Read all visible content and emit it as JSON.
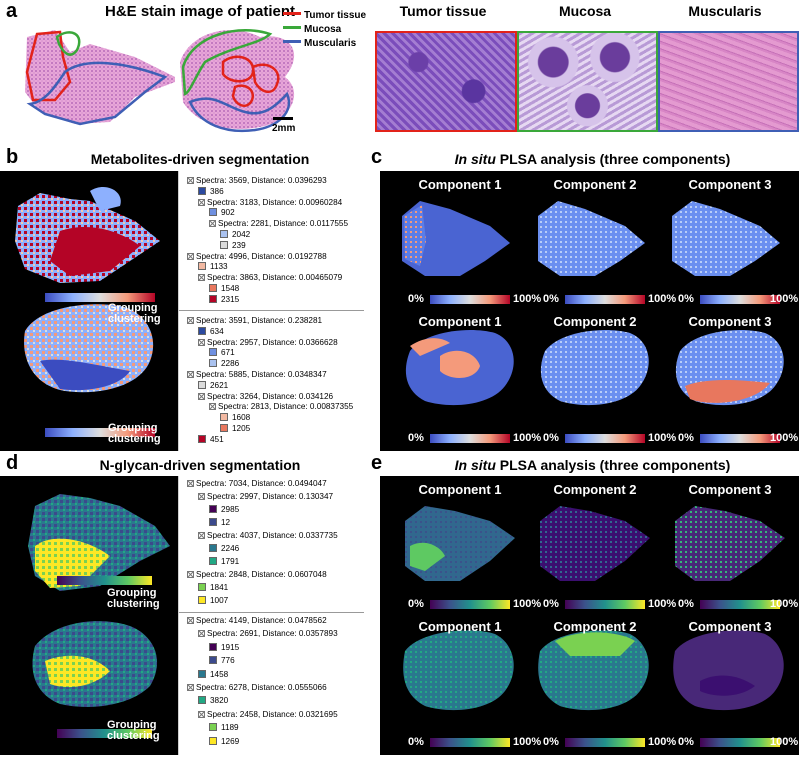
{
  "panels": {
    "a": {
      "letter": "a",
      "title": "H&E stain image of patient",
      "legend": [
        {
          "label": "Tumor tissue",
          "color": "#e2231a"
        },
        {
          "label": "Mucosa",
          "color": "#3aa83a"
        },
        {
          "label": "Muscularis",
          "color": "#3f5fb5"
        }
      ],
      "scalebar": "2mm",
      "micro_labels": [
        "Tumor tissue",
        "Mucosa",
        "Muscularis"
      ],
      "micro_border_colors": [
        "#e2231a",
        "#3aa83a",
        "#3f5fb5"
      ]
    },
    "b": {
      "letter": "b",
      "title": "Metabolites-driven segmentation",
      "grouping_label_1": "Grouping",
      "grouping_label_2": "clustering",
      "tree1": [
        {
          "indent": 0,
          "type": "node",
          "text": "Spectra: 3569, Distance: 0.0396293"
        },
        {
          "indent": 1,
          "type": "leaf",
          "text": "386",
          "color": "#2c4aa0"
        },
        {
          "indent": 1,
          "type": "node",
          "text": "Spectra: 3183, Distance: 0.00960284"
        },
        {
          "indent": 2,
          "type": "leaf",
          "text": "902",
          "color": "#6f90e0"
        },
        {
          "indent": 2,
          "type": "node",
          "text": "Spectra: 2281, Distance: 0.0117555"
        },
        {
          "indent": 3,
          "type": "leaf",
          "text": "2042",
          "color": "#aac2ef"
        },
        {
          "indent": 3,
          "type": "leaf",
          "text": "239",
          "color": "#dcdcdc"
        },
        {
          "indent": 0,
          "type": "node",
          "text": "Spectra: 4996, Distance: 0.0192788"
        },
        {
          "indent": 1,
          "type": "leaf",
          "text": "1133",
          "color": "#f2b9a2"
        },
        {
          "indent": 1,
          "type": "node",
          "text": "Spectra: 3863, Distance: 0.00465079"
        },
        {
          "indent": 2,
          "type": "leaf",
          "text": "1548",
          "color": "#e8775e"
        },
        {
          "indent": 2,
          "type": "leaf",
          "text": "2315",
          "color": "#b40426"
        }
      ],
      "tree2": [
        {
          "indent": 0,
          "type": "node",
          "text": "Spectra: 3591, Distance: 0.238281"
        },
        {
          "indent": 1,
          "type": "leaf",
          "text": "634",
          "color": "#2c4aa0"
        },
        {
          "indent": 1,
          "type": "node",
          "text": "Spectra: 2957, Distance: 0.0366628"
        },
        {
          "indent": 2,
          "type": "leaf",
          "text": "671",
          "color": "#6f90e0"
        },
        {
          "indent": 2,
          "type": "leaf",
          "text": "2286",
          "color": "#aac2ef"
        },
        {
          "indent": 0,
          "type": "node",
          "text": "Spectra: 5885, Distance: 0.0348347"
        },
        {
          "indent": 1,
          "type": "leaf",
          "text": "2621",
          "color": "#dcdcdc"
        },
        {
          "indent": 1,
          "type": "node",
          "text": "Spectra: 3264, Distance: 0.034126"
        },
        {
          "indent": 2,
          "type": "node",
          "text": "Spectra: 2813, Distance: 0.00837355"
        },
        {
          "indent": 3,
          "type": "leaf",
          "text": "1608",
          "color": "#f2b9a2"
        },
        {
          "indent": 3,
          "type": "leaf",
          "text": "1205",
          "color": "#e8775e"
        },
        {
          "indent": 1,
          "type": "leaf",
          "text": "451",
          "color": "#b40426"
        }
      ]
    },
    "c": {
      "letter": "c",
      "title_italic": "In situ",
      "title_rest": " PLSA analysis (three components)",
      "components": [
        "Component 1",
        "Component 2",
        "Component 3"
      ],
      "cbar_min": "0%",
      "cbar_max": "100%"
    },
    "d": {
      "letter": "d",
      "title": "N-glycan-driven segmentation",
      "grouping_label_1": "Grouping",
      "grouping_label_2": "clustering",
      "tree1": [
        {
          "indent": 0,
          "type": "node",
          "text": "Spectra: 7034, Distance: 0.0494047"
        },
        {
          "indent": 1,
          "type": "node",
          "text": "Spectra: 2997, Distance: 0.130347"
        },
        {
          "indent": 2,
          "type": "leaf",
          "text": "2985",
          "color": "#440154"
        },
        {
          "indent": 2,
          "type": "leaf",
          "text": "12",
          "color": "#3b4a8c"
        },
        {
          "indent": 1,
          "type": "node",
          "text": "Spectra: 4037, Distance: 0.0337735"
        },
        {
          "indent": 2,
          "type": "leaf",
          "text": "2246",
          "color": "#2a788e"
        },
        {
          "indent": 2,
          "type": "leaf",
          "text": "1791",
          "color": "#22a884"
        },
        {
          "indent": 0,
          "type": "node",
          "text": "Spectra: 2848, Distance: 0.0607048"
        },
        {
          "indent": 1,
          "type": "leaf",
          "text": "1841",
          "color": "#7ad151"
        },
        {
          "indent": 1,
          "type": "leaf",
          "text": "1007",
          "color": "#fde725"
        }
      ],
      "tree2": [
        {
          "indent": 0,
          "type": "node",
          "text": "Spectra: 4149, Distance: 0.0478562"
        },
        {
          "indent": 1,
          "type": "node",
          "text": "Spectra: 2691, Distance: 0.0357893"
        },
        {
          "indent": 2,
          "type": "leaf",
          "text": "1915",
          "color": "#440154"
        },
        {
          "indent": 2,
          "type": "leaf",
          "text": "776",
          "color": "#3b4a8c"
        },
        {
          "indent": 1,
          "type": "leaf",
          "text": "1458",
          "color": "#2a788e"
        },
        {
          "indent": 0,
          "type": "node",
          "text": "Spectra: 6278, Distance: 0.0555066"
        },
        {
          "indent": 1,
          "type": "leaf",
          "text": "3820",
          "color": "#22a884"
        },
        {
          "indent": 1,
          "type": "node",
          "text": "Spectra: 2458, Distance: 0.0321695"
        },
        {
          "indent": 2,
          "type": "leaf",
          "text": "1189",
          "color": "#7ad151"
        },
        {
          "indent": 2,
          "type": "leaf",
          "text": "1269",
          "color": "#fde725"
        }
      ]
    },
    "e": {
      "letter": "e",
      "title_italic": "In situ",
      "title_rest": " PLSA analysis (three components)",
      "components": [
        "Component 1",
        "Component 2",
        "Component 3"
      ],
      "components_row2": [
        "Component 1",
        "Component 2",
        "Component 3"
      ],
      "cbar_min": "0%",
      "cbar_max": "100%"
    }
  }
}
